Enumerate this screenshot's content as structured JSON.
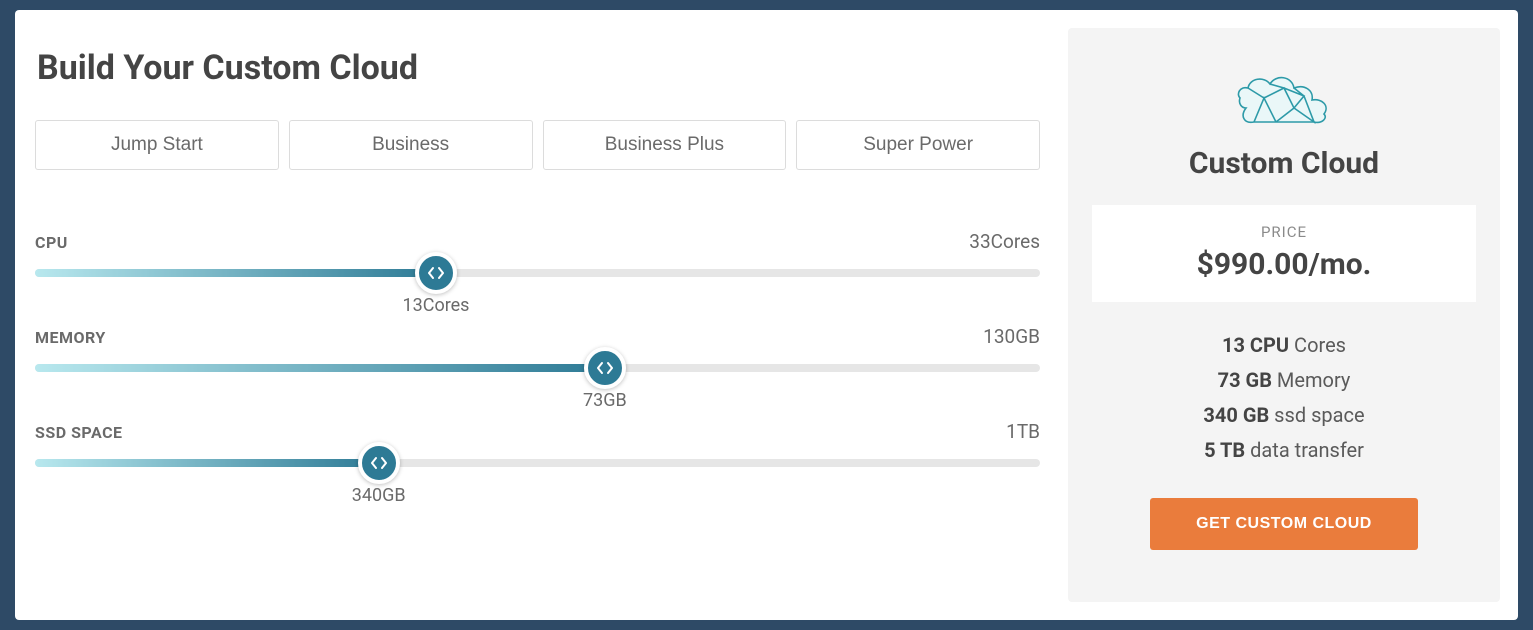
{
  "title": "Build Your Custom Cloud",
  "tabs": [
    {
      "label": "Jump Start"
    },
    {
      "label": "Business"
    },
    {
      "label": "Business Plus"
    },
    {
      "label": "Super Power"
    }
  ],
  "sliders": {
    "cpu": {
      "label": "CPU",
      "max_text": "33Cores",
      "value_text": "13Cores",
      "fill_percent": 39.9,
      "track_color": "#e6e6e6",
      "fill_gradient_start": "#b8e8ee",
      "fill_gradient_end": "#2d7a95",
      "handle_color": "#2d7a95"
    },
    "memory": {
      "label": "MEMORY",
      "max_text": "130GB",
      "value_text": "73GB",
      "fill_percent": 56.7,
      "track_color": "#e6e6e6",
      "fill_gradient_start": "#b8e8ee",
      "fill_gradient_end": "#2d7a95",
      "handle_color": "#2d7a95"
    },
    "ssd": {
      "label": "SSD SPACE",
      "max_text": "1TB",
      "value_text": "340GB",
      "fill_percent": 34.2,
      "track_color": "#e6e6e6",
      "fill_gradient_start": "#b8e8ee",
      "fill_gradient_end": "#2d7a95",
      "handle_color": "#2d7a95"
    }
  },
  "summary": {
    "plan_title": "Custom Cloud",
    "price_label": "PRICE",
    "price_value": "$990.00/mo.",
    "specs": {
      "cpu_bold": "13 CPU",
      "cpu_rest": " Cores",
      "mem_bold": "73 GB",
      "mem_rest": " Memory",
      "ssd_bold": "340 GB",
      "ssd_rest": " ssd space",
      "data_bold": "5 TB",
      "data_rest": " data transfer"
    },
    "cta_label": "GET CUSTOM CLOUD",
    "cta_color": "#ea7c3c"
  },
  "colors": {
    "page_bg": "#2e4a66",
    "card_bg": "#ffffff",
    "panel_bg": "#f4f4f4",
    "text_dark": "#444444",
    "text_mid": "#6a6a6a",
    "icon_stroke": "#2d9aa8"
  }
}
